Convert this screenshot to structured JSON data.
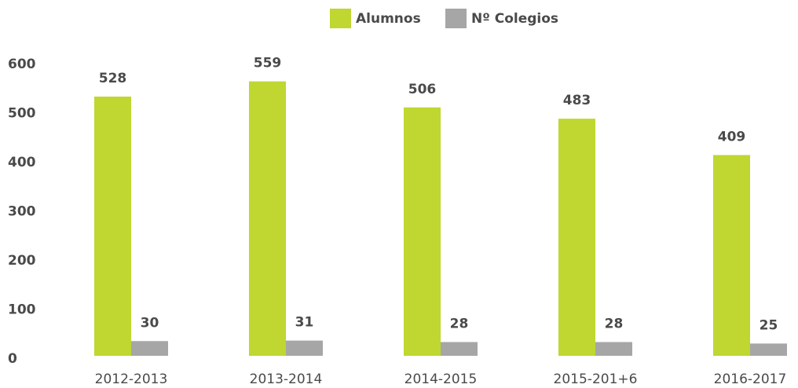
{
  "chart_data": {
    "type": "bar",
    "categories": [
      "2012-2013",
      "2013-2014",
      "2014-2015",
      "2015-201+6",
      "2016-2017"
    ],
    "series": [
      {
        "name": "Alumnos",
        "color": "#bfd730",
        "values": [
          528,
          559,
          506,
          483,
          409
        ]
      },
      {
        "name": "Nº Colegios",
        "color": "#a6a6a6",
        "values": [
          30,
          31,
          28,
          28,
          25
        ]
      }
    ],
    "ylim": [
      0,
      600
    ],
    "yticks": [
      0,
      100,
      200,
      300,
      400,
      500,
      600
    ],
    "grid": false,
    "legend": "top"
  }
}
